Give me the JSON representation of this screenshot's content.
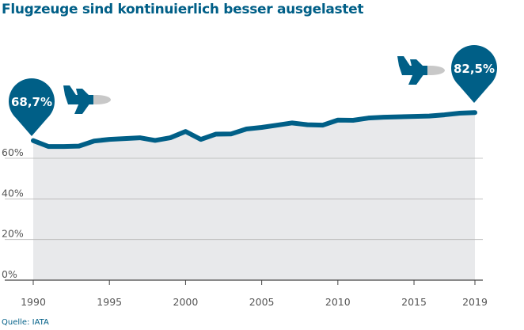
{
  "title": "Flugzeuge sind kontinuierlich besser ausgelastet",
  "source": "Quelle: IATA",
  "colors": {
    "line": "#005f87",
    "area": "#e8e9eb",
    "grid": "#b5b5b5"
  },
  "chart_data": {
    "type": "area",
    "title": "Flugzeuge sind kontinuierlich besser ausgelastet",
    "x": [
      1990,
      1991,
      1992,
      1993,
      1994,
      1995,
      1996,
      1997,
      1998,
      1999,
      2000,
      2001,
      2002,
      2003,
      2004,
      2005,
      2006,
      2007,
      2008,
      2009,
      2010,
      2011,
      2012,
      2013,
      2014,
      2015,
      2016,
      2017,
      2018,
      2019
    ],
    "series": [
      {
        "values": [
          68.7,
          65.8,
          65.8,
          66.0,
          68.5,
          69.3,
          69.7,
          70.1,
          68.8,
          70.1,
          73.2,
          69.3,
          71.9,
          72.0,
          74.4,
          75.2,
          76.3,
          77.4,
          76.5,
          76.3,
          78.8,
          78.7,
          79.8,
          80.2,
          80.4,
          80.6,
          80.8,
          81.4,
          82.2,
          82.5
        ]
      }
    ],
    "xticks": [
      "1990",
      "1995",
      "2000",
      "2005",
      "2010",
      "2015",
      "2019"
    ],
    "yticks": [
      "0%",
      "20%",
      "40%",
      "60%"
    ],
    "ylim": [
      0,
      100
    ],
    "xlim": [
      1990,
      2019
    ],
    "grid": true,
    "annotations": [
      {
        "label": "68,7%",
        "year": 1990,
        "icon": "airplane-icon"
      },
      {
        "label": "82,5%",
        "year": 2019,
        "icon": "airplane-icon"
      }
    ]
  }
}
